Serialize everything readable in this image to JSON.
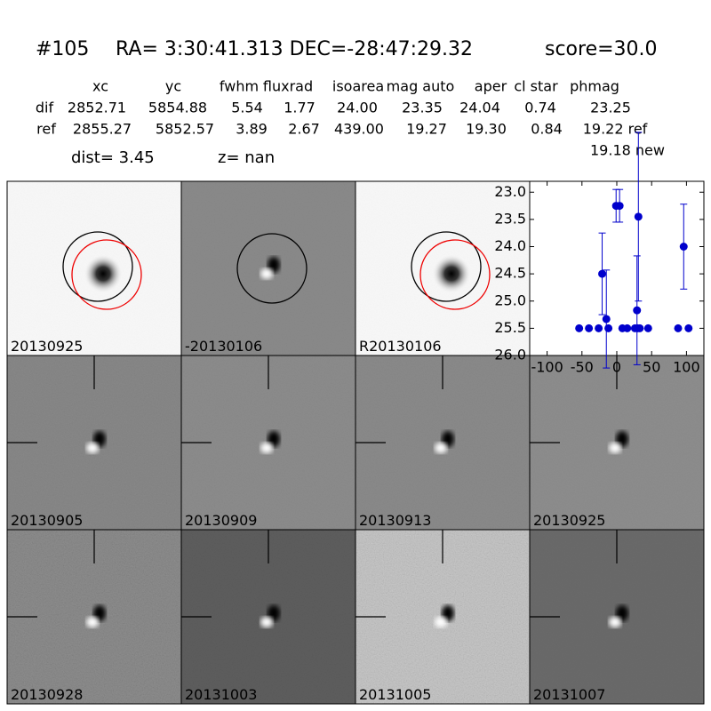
{
  "header": {
    "id": "#105",
    "coords": "RA= 3:30:41.313 DEC=-28:47:29.32",
    "score": "score=30.0"
  },
  "table": {
    "columns": [
      "xc",
      "yc",
      "fwhm",
      "fluxrad",
      "isoarea",
      "mag auto",
      "aper",
      "cl star",
      "phmag"
    ],
    "rows": [
      [
        "dif",
        "2852.71",
        "5854.88",
        "5.54",
        "1.77",
        "24.00",
        "23.35",
        "24.04",
        "0.74",
        "23.25"
      ],
      [
        "ref",
        "2855.27",
        "5852.57",
        "3.89",
        "2.67",
        "439.00",
        "19.27",
        "19.30",
        "0.84",
        "19.22 ref"
      ]
    ],
    "extra": "19.18 new"
  },
  "dist": "dist=  3.45",
  "z": "z=   nan",
  "panels": [
    {
      "label": "20130925"
    },
    {
      "label": "-20130106"
    },
    {
      "label": "R20130106"
    },
    {
      "label": "20130905"
    },
    {
      "label": "20130909"
    },
    {
      "label": "20130913"
    },
    {
      "label": "20130925",
      "color": "#ff0000"
    },
    {
      "label": "20130928"
    },
    {
      "label": "20131003"
    },
    {
      "label": "20131005"
    },
    {
      "label": "20131007"
    }
  ],
  "chart_data": {
    "type": "errorbar",
    "xlim": [
      -125,
      125
    ],
    "ylim": [
      26.0,
      22.8
    ],
    "xticks": [
      -100,
      -50,
      0,
      50,
      100
    ],
    "yticks": [
      {
        "value": 23.0,
        "label": "23.0"
      },
      {
        "value": 23.5,
        "label": "23.5"
      },
      {
        "value": 24.0,
        "label": "24.0"
      },
      {
        "value": 24.5,
        "label": "24.5"
      },
      {
        "value": 25.0,
        "label": "25.0"
      },
      {
        "value": 25.5,
        "label": "25.5"
      },
      {
        "value": 26.0,
        "label": "26.0"
      }
    ],
    "series": [
      {
        "color": "#0000cc",
        "x": [
          -54,
          -40,
          -26,
          -21,
          -15,
          -12,
          -1,
          4,
          8,
          15,
          26,
          29,
          30,
          31,
          33,
          45,
          88,
          96,
          103
        ],
        "values": [
          25.5,
          25.5,
          25.5,
          24.5,
          25.33,
          25.5,
          23.25,
          23.25,
          25.5,
          25.5,
          25.5,
          25.17,
          25.5,
          23.45,
          25.5,
          25.5,
          25.5,
          24.0,
          25.5
        ],
        "errors": [
          0,
          0,
          0,
          0.75,
          0.9,
          0,
          0.3,
          0.3,
          0,
          0,
          0,
          1.0,
          0,
          1.55,
          0,
          0,
          0,
          0.78,
          0
        ]
      }
    ]
  }
}
